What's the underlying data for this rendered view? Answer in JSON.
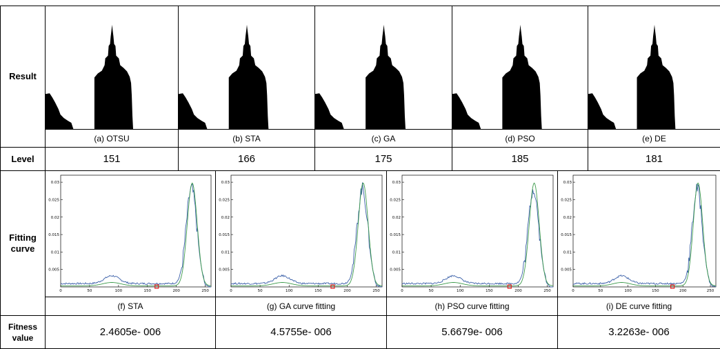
{
  "row_labels": {
    "result": "Result",
    "level": "Level",
    "fitting": "Fitting curve",
    "fitness": "Fitness value"
  },
  "methods": [
    {
      "caption": "(a) OTSU",
      "level": 151
    },
    {
      "caption": "(b) STA",
      "level": 166
    },
    {
      "caption": "(c) GA",
      "level": 175
    },
    {
      "caption": "(d) PSO",
      "level": 185
    },
    {
      "caption": "(e) DE",
      "level": 181
    }
  ],
  "curves": [
    {
      "caption": "(f) STA",
      "fitness": "2.4605e- 006"
    },
    {
      "caption": "(g) GA curve fitting",
      "fitness": "4.5755e- 006"
    },
    {
      "caption": "(h) PSO curve fitting",
      "fitness": "5.6679e- 006"
    },
    {
      "caption": "(i) DE curve fitting",
      "fitness": "3.2263e- 006"
    }
  ],
  "plot_axes": {
    "xlim": [
      0,
      260
    ],
    "ylim": [
      0,
      0.032
    ],
    "xticks": [
      0,
      50,
      100,
      150,
      200,
      250
    ],
    "yticks": [
      0.005,
      0.01,
      0.015,
      0.02,
      0.025,
      0.03
    ]
  }
}
